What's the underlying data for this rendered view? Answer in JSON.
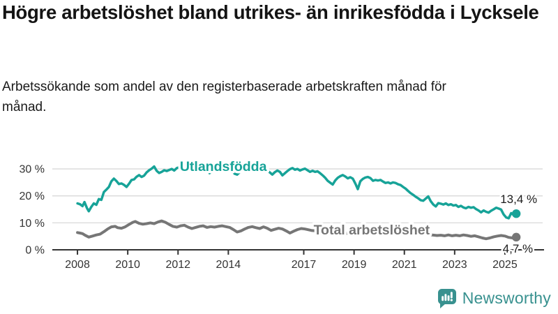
{
  "header": {
    "title": "Högre arbetslöshet bland utrikes- än inrikesfödda i Lycksele",
    "subtitle": "Arbetssökande som andel av den registerbaserade arbetskraften månad för månad."
  },
  "footer": {
    "brand": "Newsworthy",
    "logo_icon": "bar-chart-speech-bubble-icon",
    "logo_color": "#38918f"
  },
  "colors": {
    "teal": "#17a398",
    "gray": "#767676",
    "grid": "#d9d9d9",
    "axis": "#333333",
    "text": "#1c1c1c"
  },
  "chart_data": {
    "type": "line",
    "unit": "%",
    "xlim": [
      2007,
      2026.5
    ],
    "ylim": [
      0,
      37
    ],
    "grid": "horizontal",
    "legend_position": "inline-labels",
    "x_ticks": [
      2008,
      2010,
      2012,
      2014,
      2017,
      2019,
      2021,
      2023,
      2025
    ],
    "y_ticks": [
      {
        "value": 0,
        "label": "0 %"
      },
      {
        "value": 10,
        "label": "10 %"
      },
      {
        "value": 20,
        "label": "20 %"
      },
      {
        "value": 30,
        "label": "30 %"
      }
    ],
    "series": [
      {
        "name": "Utlandsfödda",
        "color": "#17a398",
        "stroke_width": 3.5,
        "inline_label": {
          "text": "Utlandsfödda",
          "x": 2013.8,
          "y": 29.2
        },
        "end_label": {
          "text": "13,4 %",
          "value": 13.4,
          "dx": 30,
          "dy": -15
        },
        "points": [
          [
            2008.0,
            17.2
          ],
          [
            2008.1,
            16.9
          ],
          [
            2008.2,
            16.2
          ],
          [
            2008.28,
            17.7
          ],
          [
            2008.38,
            15.4
          ],
          [
            2008.45,
            14.3
          ],
          [
            2008.55,
            15.9
          ],
          [
            2008.65,
            17.2
          ],
          [
            2008.75,
            16.7
          ],
          [
            2008.85,
            18.8
          ],
          [
            2008.95,
            18.5
          ],
          [
            2009.05,
            21.4
          ],
          [
            2009.15,
            22.3
          ],
          [
            2009.25,
            23.3
          ],
          [
            2009.35,
            25.4
          ],
          [
            2009.45,
            26.4
          ],
          [
            2009.55,
            25.5
          ],
          [
            2009.65,
            24.4
          ],
          [
            2009.75,
            24.6
          ],
          [
            2009.85,
            24.1
          ],
          [
            2009.95,
            23.3
          ],
          [
            2010.05,
            24.5
          ],
          [
            2010.15,
            25.9
          ],
          [
            2010.25,
            26.1
          ],
          [
            2010.35,
            27.1
          ],
          [
            2010.45,
            27.7
          ],
          [
            2010.55,
            27.0
          ],
          [
            2010.65,
            27.5
          ],
          [
            2010.75,
            28.7
          ],
          [
            2010.85,
            29.5
          ],
          [
            2010.95,
            30.1
          ],
          [
            2011.05,
            30.9
          ],
          [
            2011.15,
            29.3
          ],
          [
            2011.25,
            28.5
          ],
          [
            2011.35,
            28.9
          ],
          [
            2011.45,
            29.5
          ],
          [
            2011.55,
            29.2
          ],
          [
            2011.65,
            29.6
          ],
          [
            2011.75,
            30.0
          ],
          [
            2011.85,
            29.4
          ],
          [
            2011.95,
            30.3
          ],
          [
            2012.05,
            30.6
          ],
          [
            2012.15,
            30.0
          ],
          [
            2012.25,
            28.8
          ],
          [
            2012.35,
            29.8
          ],
          [
            2012.45,
            30.3
          ],
          [
            2012.55,
            29.6
          ],
          [
            2012.65,
            29.2
          ],
          [
            2012.75,
            29.9
          ],
          [
            2012.85,
            30.4
          ],
          [
            2012.95,
            29.8
          ],
          [
            2013.05,
            30.6
          ],
          [
            2013.15,
            29.8
          ],
          [
            2013.25,
            28.4
          ],
          [
            2013.35,
            29.1
          ],
          [
            2013.45,
            30.0
          ],
          [
            2013.55,
            30.4
          ],
          [
            2013.65,
            29.7
          ],
          [
            2013.75,
            30.2
          ],
          [
            2013.85,
            29.6
          ],
          [
            2013.95,
            30.1
          ],
          [
            2014.05,
            30.4
          ],
          [
            2014.15,
            29.3
          ],
          [
            2014.25,
            28.2
          ],
          [
            2014.35,
            27.9
          ],
          [
            2014.45,
            28.8
          ],
          [
            2014.55,
            29.6
          ],
          [
            2014.65,
            30.1
          ],
          [
            2014.75,
            29.5
          ],
          [
            2014.85,
            29.9
          ],
          [
            2014.95,
            30.2
          ],
          [
            2015.05,
            30.5
          ],
          [
            2015.15,
            29.9
          ],
          [
            2015.25,
            30.3
          ],
          [
            2015.35,
            30.7
          ],
          [
            2015.45,
            30.1
          ],
          [
            2015.55,
            29.4
          ],
          [
            2015.65,
            28.7
          ],
          [
            2015.75,
            27.9
          ],
          [
            2015.85,
            28.8
          ],
          [
            2015.95,
            29.4
          ],
          [
            2016.05,
            28.9
          ],
          [
            2016.15,
            27.6
          ],
          [
            2016.25,
            28.4
          ],
          [
            2016.35,
            29.2
          ],
          [
            2016.45,
            29.9
          ],
          [
            2016.55,
            30.3
          ],
          [
            2016.65,
            29.7
          ],
          [
            2016.75,
            30.0
          ],
          [
            2016.85,
            29.4
          ],
          [
            2016.95,
            29.8
          ],
          [
            2017.05,
            30.1
          ],
          [
            2017.15,
            29.5
          ],
          [
            2017.25,
            28.9
          ],
          [
            2017.35,
            29.3
          ],
          [
            2017.45,
            28.9
          ],
          [
            2017.55,
            29.1
          ],
          [
            2017.65,
            28.4
          ],
          [
            2017.75,
            27.6
          ],
          [
            2017.85,
            26.7
          ],
          [
            2017.95,
            25.6
          ],
          [
            2018.05,
            24.9
          ],
          [
            2018.15,
            24.2
          ],
          [
            2018.25,
            25.7
          ],
          [
            2018.35,
            26.7
          ],
          [
            2018.45,
            27.3
          ],
          [
            2018.55,
            27.7
          ],
          [
            2018.65,
            27.2
          ],
          [
            2018.75,
            26.5
          ],
          [
            2018.85,
            26.9
          ],
          [
            2018.95,
            26.4
          ],
          [
            2019.05,
            24.6
          ],
          [
            2019.15,
            22.5
          ],
          [
            2019.25,
            25.4
          ],
          [
            2019.35,
            26.3
          ],
          [
            2019.45,
            26.8
          ],
          [
            2019.55,
            27.0
          ],
          [
            2019.65,
            26.6
          ],
          [
            2019.75,
            25.6
          ],
          [
            2019.85,
            25.9
          ],
          [
            2019.95,
            25.7
          ],
          [
            2020.05,
            25.9
          ],
          [
            2020.15,
            25.3
          ],
          [
            2020.25,
            24.8
          ],
          [
            2020.35,
            25.0
          ],
          [
            2020.45,
            24.6
          ],
          [
            2020.55,
            25.0
          ],
          [
            2020.65,
            24.8
          ],
          [
            2020.75,
            24.3
          ],
          [
            2020.85,
            24.0
          ],
          [
            2020.95,
            23.3
          ],
          [
            2021.05,
            22.7
          ],
          [
            2021.15,
            21.8
          ],
          [
            2021.25,
            21.0
          ],
          [
            2021.35,
            20.4
          ],
          [
            2021.45,
            19.7
          ],
          [
            2021.55,
            19.1
          ],
          [
            2021.65,
            18.4
          ],
          [
            2021.75,
            18.2
          ],
          [
            2021.85,
            19.0
          ],
          [
            2021.95,
            19.8
          ],
          [
            2022.05,
            18.0
          ],
          [
            2022.15,
            16.8
          ],
          [
            2022.25,
            16.1
          ],
          [
            2022.35,
            17.3
          ],
          [
            2022.45,
            17.1
          ],
          [
            2022.55,
            16.8
          ],
          [
            2022.65,
            17.2
          ],
          [
            2022.75,
            16.6
          ],
          [
            2022.85,
            16.9
          ],
          [
            2022.95,
            16.4
          ],
          [
            2023.05,
            16.6
          ],
          [
            2023.15,
            15.9
          ],
          [
            2023.25,
            16.3
          ],
          [
            2023.35,
            15.7
          ],
          [
            2023.45,
            15.4
          ],
          [
            2023.55,
            15.9
          ],
          [
            2023.65,
            15.6
          ],
          [
            2023.75,
            15.8
          ],
          [
            2023.85,
            15.1
          ],
          [
            2023.95,
            14.6
          ],
          [
            2024.05,
            13.9
          ],
          [
            2024.15,
            14.6
          ],
          [
            2024.25,
            14.1
          ],
          [
            2024.35,
            13.8
          ],
          [
            2024.45,
            14.5
          ],
          [
            2024.55,
            15.0
          ],
          [
            2024.65,
            15.6
          ],
          [
            2024.75,
            15.3
          ],
          [
            2024.85,
            14.9
          ],
          [
            2024.95,
            13.1
          ],
          [
            2025.05,
            12.0
          ],
          [
            2025.15,
            11.7
          ],
          [
            2025.25,
            13.6
          ],
          [
            2025.35,
            12.9
          ],
          [
            2025.45,
            13.4
          ]
        ]
      },
      {
        "name": "Total arbetslöshet",
        "color": "#767676",
        "stroke_width": 4,
        "inline_label": {
          "text": "Total arbetslöshet",
          "x": 2019.7,
          "y": 5.7
        },
        "end_label": {
          "text": "4,7 %",
          "value": 4.7,
          "dx": 24,
          "dy": 22
        },
        "points": [
          [
            2008.0,
            6.4
          ],
          [
            2008.1,
            6.2
          ],
          [
            2008.2,
            6.0
          ],
          [
            2008.3,
            5.4
          ],
          [
            2008.45,
            4.7
          ],
          [
            2008.6,
            5.1
          ],
          [
            2008.75,
            5.5
          ],
          [
            2008.9,
            5.8
          ],
          [
            2009.05,
            6.7
          ],
          [
            2009.2,
            7.7
          ],
          [
            2009.35,
            8.5
          ],
          [
            2009.5,
            8.7
          ],
          [
            2009.6,
            8.2
          ],
          [
            2009.75,
            8.0
          ],
          [
            2009.9,
            8.5
          ],
          [
            2010.05,
            9.4
          ],
          [
            2010.2,
            10.2
          ],
          [
            2010.3,
            10.5
          ],
          [
            2010.45,
            9.8
          ],
          [
            2010.6,
            9.5
          ],
          [
            2010.75,
            9.7
          ],
          [
            2010.9,
            10.0
          ],
          [
            2011.05,
            9.7
          ],
          [
            2011.2,
            10.3
          ],
          [
            2011.35,
            10.7
          ],
          [
            2011.5,
            10.2
          ],
          [
            2011.65,
            9.4
          ],
          [
            2011.8,
            8.7
          ],
          [
            2011.95,
            8.4
          ],
          [
            2012.1,
            8.9
          ],
          [
            2012.25,
            9.1
          ],
          [
            2012.4,
            8.4
          ],
          [
            2012.55,
            7.9
          ],
          [
            2012.7,
            8.3
          ],
          [
            2012.85,
            8.7
          ],
          [
            2013.0,
            8.9
          ],
          [
            2013.15,
            8.3
          ],
          [
            2013.3,
            8.6
          ],
          [
            2013.45,
            8.4
          ],
          [
            2013.6,
            8.7
          ],
          [
            2013.75,
            8.9
          ],
          [
            2013.9,
            8.6
          ],
          [
            2014.05,
            8.3
          ],
          [
            2014.2,
            7.5
          ],
          [
            2014.35,
            6.6
          ],
          [
            2014.5,
            7.0
          ],
          [
            2014.65,
            7.7
          ],
          [
            2014.8,
            8.3
          ],
          [
            2014.95,
            8.6
          ],
          [
            2015.1,
            8.2
          ],
          [
            2015.25,
            7.9
          ],
          [
            2015.4,
            8.5
          ],
          [
            2015.55,
            8.0
          ],
          [
            2015.7,
            7.2
          ],
          [
            2015.85,
            7.6
          ],
          [
            2016.0,
            8.0
          ],
          [
            2016.15,
            7.7
          ],
          [
            2016.3,
            7.0
          ],
          [
            2016.45,
            6.2
          ],
          [
            2016.6,
            6.9
          ],
          [
            2016.75,
            7.5
          ],
          [
            2016.9,
            7.9
          ],
          [
            2017.05,
            7.7
          ],
          [
            2017.3,
            7.2
          ],
          [
            2017.6,
            6.9
          ],
          [
            2018.0,
            6.6
          ],
          [
            2018.5,
            6.2
          ],
          [
            2019.0,
            6.0
          ],
          [
            2019.5,
            5.9
          ],
          [
            2020.0,
            6.3
          ],
          [
            2020.5,
            6.6
          ],
          [
            2021.0,
            6.3
          ],
          [
            2021.5,
            5.9
          ],
          [
            2022.0,
            5.6
          ],
          [
            2022.3,
            5.3
          ],
          [
            2022.45,
            5.4
          ],
          [
            2022.6,
            5.2
          ],
          [
            2022.75,
            5.5
          ],
          [
            2022.9,
            5.2
          ],
          [
            2023.05,
            5.4
          ],
          [
            2023.2,
            5.2
          ],
          [
            2023.35,
            5.5
          ],
          [
            2023.5,
            5.3
          ],
          [
            2023.65,
            5.0
          ],
          [
            2023.8,
            5.2
          ],
          [
            2023.95,
            4.8
          ],
          [
            2024.1,
            4.4
          ],
          [
            2024.25,
            4.1
          ],
          [
            2024.4,
            4.4
          ],
          [
            2024.55,
            4.8
          ],
          [
            2024.7,
            5.1
          ],
          [
            2024.85,
            5.3
          ],
          [
            2025.0,
            5.1
          ],
          [
            2025.15,
            4.6
          ],
          [
            2025.3,
            4.4
          ],
          [
            2025.45,
            4.7
          ]
        ]
      }
    ]
  }
}
